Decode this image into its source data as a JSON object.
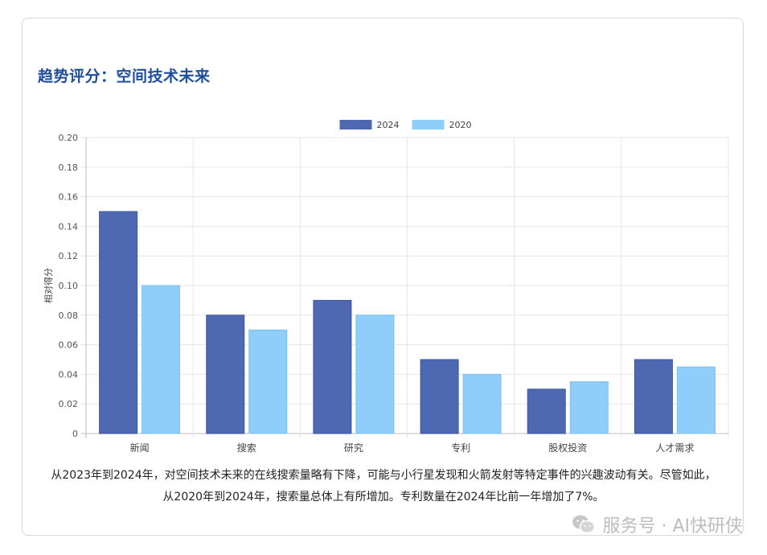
{
  "header": {
    "title": "趋势评分：空间技术未来"
  },
  "chart_data": {
    "type": "bar",
    "categories": [
      "新闻",
      "搜索",
      "研究",
      "专利",
      "股权投资",
      "人才需求"
    ],
    "series": [
      {
        "name": "2024",
        "color": "#4e68b2",
        "values": [
          0.15,
          0.08,
          0.09,
          0.05,
          0.03,
          0.05
        ]
      },
      {
        "name": "2020",
        "color": "#8fcdfa",
        "values": [
          0.1,
          0.07,
          0.08,
          0.04,
          0.035,
          0.045
        ]
      }
    ],
    "ylabel": "相对得分",
    "ylim": [
      0,
      0.2
    ],
    "yticks": [
      "0",
      "0.02",
      "0.04",
      "0.06",
      "0.08",
      "0.10",
      "0.12",
      "0.14",
      "0.16",
      "0.18",
      "0.20"
    ],
    "grid": true,
    "legend": "top-center"
  },
  "caption": {
    "line1": "从2023年到2024年，对空间技术未来的在线搜索量略有下降，可能与小行星发现和火箭发射等特定事件的兴趣波动有关。尽管如此，",
    "line2": "从2020年到2024年，搜索量总体上有所增加。专利数量在2024年比前一年增加了7%。"
  },
  "watermark": {
    "text": "服务号 · AI快研侠",
    "icon": "wechat-icon"
  }
}
